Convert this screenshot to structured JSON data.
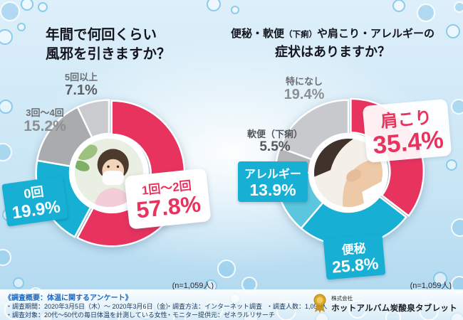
{
  "page": {
    "bg_color": "#c9e6f5",
    "accent_pink": "#e8335f",
    "accent_cyan": "#17b0d4"
  },
  "chart_data": [
    {
      "type": "pie",
      "style": "donut",
      "title_line1": "年間で何回くらい",
      "title_line2": "風邪を引きますか？",
      "n_label": "(n=1,059人)",
      "unit": "%",
      "segments": [
        {
          "label": "1回〜2回",
          "value": 57.8,
          "pct": "57.8%",
          "color": "#e8335f",
          "explode": true
        },
        {
          "label": "0回",
          "value": 19.9,
          "pct": "19.9%",
          "color": "#17b0d4",
          "explode": false
        },
        {
          "label": "3回〜4回",
          "value": 15.2,
          "pct": "15.2%",
          "color": "#a9abae",
          "explode": false
        },
        {
          "label": "5回以上",
          "value": 7.1,
          "pct": "7.1%",
          "color": "#c9cbce",
          "explode": false
        }
      ]
    },
    {
      "type": "pie",
      "style": "donut",
      "title_pre": "便秘・軟便",
      "title_small": "（下痢）",
      "title_post": "や肩こり・アレルギーの",
      "title_line2": "症状はありますか？",
      "n_label": "(n=1,059人)",
      "unit": "%",
      "segments": [
        {
          "label": "肩こり",
          "value": 35.4,
          "pct": "35.4%",
          "color": "#e8335f",
          "explode": true
        },
        {
          "label": "便秘",
          "value": 25.8,
          "pct": "25.8%",
          "color": "#17b0d4",
          "explode": false
        },
        {
          "label": "アレルギー",
          "value": 13.9,
          "pct": "13.9%",
          "color": "#5bc6de",
          "explode": false
        },
        {
          "label": "軟便（下痢）",
          "value": 5.5,
          "pct": "5.5%",
          "color": "#b3b5b8",
          "explode": false
        },
        {
          "label": "特になし",
          "value": 19.4,
          "pct": "19.4%",
          "color": "#c7c9cc",
          "explode": false
        }
      ]
    }
  ],
  "footer": {
    "heading": "《調査概要：体温に関するアンケート》",
    "items": [
      "・調査期間：2020年3月5日（木）〜 2020年3月6日（金）",
      "・調査対象：20代〜50代の毎日体温を計測している女性",
      "・調査方法：インターネット調査",
      "・モニター提供元：ゼネラルリサーチ",
      "・調査人数：1,059人"
    ]
  },
  "logo": {
    "company_prefix": "株式会社",
    "company_name": "ホットアルバム炭酸泉タブレット"
  }
}
